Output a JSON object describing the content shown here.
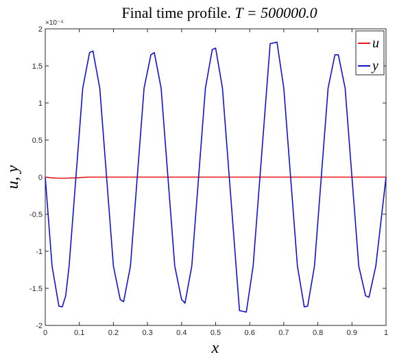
{
  "chart_data": {
    "type": "line",
    "title_text": "Final time profile. ",
    "title_math": "T = 500000.0",
    "xlabel": "x",
    "ylabel": "u, y",
    "xlim": [
      0,
      1
    ],
    "ylim": [
      -0.0002,
      0.0002
    ],
    "x_ticks": [
      "0",
      "0.1",
      "0.2",
      "0.3",
      "0.4",
      "0.5",
      "0.6",
      "0.7",
      "0.8",
      "0.9",
      "1"
    ],
    "y_ticks": [
      "-2",
      "-1.5",
      "-1",
      "-0.5",
      "0",
      "0.5",
      "1",
      "1.5",
      "2"
    ],
    "y_exponent": "×10⁻⁴",
    "grid": false,
    "legend_position": "top-right",
    "x": [
      0,
      0.02,
      0.04,
      0.05,
      0.06,
      0.07,
      0.09,
      0.11,
      0.13,
      0.14,
      0.16,
      0.18,
      0.2,
      0.22,
      0.23,
      0.25,
      0.27,
      0.29,
      0.31,
      0.32,
      0.34,
      0.36,
      0.38,
      0.4,
      0.41,
      0.43,
      0.45,
      0.47,
      0.49,
      0.5,
      0.52,
      0.54,
      0.56,
      0.57,
      0.59,
      0.61,
      0.63,
      0.65,
      0.66,
      0.68,
      0.7,
      0.72,
      0.74,
      0.76,
      0.77,
      0.79,
      0.81,
      0.83,
      0.85,
      0.86,
      0.88,
      0.9,
      0.92,
      0.94,
      0.95,
      0.97,
      0.99,
      1.0
    ],
    "series": [
      {
        "name": "u",
        "color": "#e8191b",
        "values": [
          0,
          -1e-06,
          -1.5e-06,
          -1.5e-06,
          -1.4e-06,
          -1.2e-06,
          -1e-06,
          -4e-07,
          0,
          0,
          0,
          0,
          0,
          0,
          0,
          0,
          0,
          0,
          0,
          0,
          0,
          0,
          0,
          0,
          0,
          0,
          0,
          0,
          0,
          0,
          0,
          0,
          0,
          0,
          0,
          0,
          0,
          0,
          0,
          0,
          0,
          0,
          0,
          0,
          0,
          0,
          0,
          0,
          0,
          0,
          0,
          0,
          0,
          0,
          0,
          0,
          0,
          0
        ]
      },
      {
        "name": "y",
        "color": "#1010d0",
        "values": [
          0,
          -0.00012,
          -0.000174,
          -0.000175,
          -0.00016,
          -0.00012,
          0,
          0.00012,
          0.000168,
          0.00017,
          0.00012,
          0,
          -0.00012,
          -0.000165,
          -0.000168,
          -0.00012,
          0,
          0.00012,
          0.000165,
          0.000168,
          0.00012,
          0,
          -0.00012,
          -0.000165,
          -0.00017,
          -0.00012,
          0,
          0.00012,
          0.000172,
          0.000174,
          0.00012,
          0,
          -0.00012,
          -0.00018,
          -0.000182,
          -0.00012,
          0,
          0.00012,
          0.00018,
          0.000182,
          0.00012,
          0,
          -0.00012,
          -0.000175,
          -0.000174,
          -0.00012,
          0,
          0.00012,
          0.000165,
          0.000165,
          0.00012,
          0,
          -0.00012,
          -0.00016,
          -0.000162,
          -0.00012,
          -4e-05,
          0
        ]
      }
    ]
  }
}
